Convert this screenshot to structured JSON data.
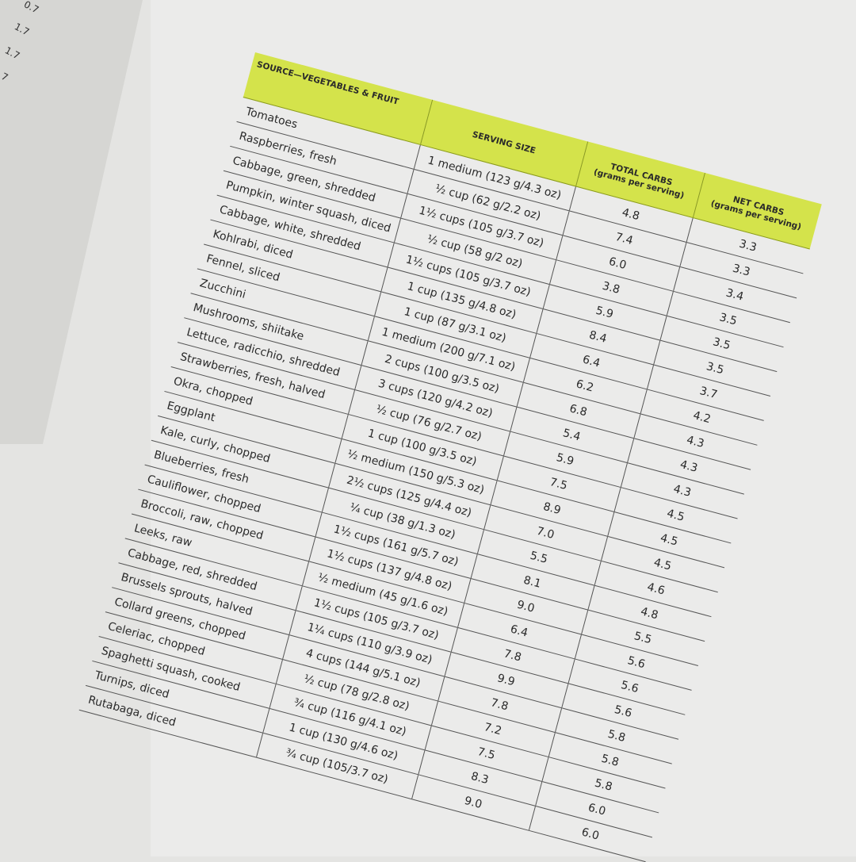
{
  "left_page": {
    "values": [
      "0.7",
      "1.7",
      "1.7",
      "7"
    ]
  },
  "table": {
    "header_color": "#d4e34b",
    "headers": {
      "source": "SOURCE—VEGETABLES & FRUIT",
      "serving": "SERVING SIZE",
      "total": "TOTAL CARBS",
      "total_sub": "(grams per serving)",
      "net": "NET CARBS",
      "net_sub": "(grams per serving)"
    },
    "rows": [
      {
        "source": "Tomatoes",
        "serving": "1 medium (123 g/4.3 oz)",
        "total": "4.8",
        "net": "3.3"
      },
      {
        "source": "Raspberries, fresh",
        "serving": "½ cup (62 g/2.2 oz)",
        "total": "7.4",
        "net": "3.3"
      },
      {
        "source": "Cabbage, green, shredded",
        "serving": "1½ cups (105 g/3.7 oz)",
        "total": "6.0",
        "net": "3.4"
      },
      {
        "source": "Pumpkin, winter squash, diced",
        "serving": "½ cup (58 g/2 oz)",
        "total": "3.8",
        "net": "3.5"
      },
      {
        "source": "Cabbage, white, shredded",
        "serving": "1½ cups (105 g/3.7 oz)",
        "total": "5.9",
        "net": "3.5"
      },
      {
        "source": "Kohlrabi, diced",
        "serving": "1 cup (135 g/4.8 oz)",
        "total": "8.4",
        "net": "3.5"
      },
      {
        "source": "Fennel, sliced",
        "serving": "1 cup (87 g/3.1 oz)",
        "total": "6.4",
        "net": "3.7"
      },
      {
        "source": "Zucchini",
        "serving": "1 medium (200 g/7.1 oz)",
        "total": "6.2",
        "net": "4.2"
      },
      {
        "source": "Mushrooms, shiitake",
        "serving": "2 cups (100 g/3.5 oz)",
        "total": "6.8",
        "net": "4.3"
      },
      {
        "source": "Lettuce, radicchio, shredded",
        "serving": "3 cups (120 g/4.2 oz)",
        "total": "5.4",
        "net": "4.3"
      },
      {
        "source": "Strawberries, fresh, halved",
        "serving": "½ cup (76 g/2.7 oz)",
        "total": "5.9",
        "net": "4.3"
      },
      {
        "source": "Okra, chopped",
        "serving": "1 cup (100 g/3.5 oz)",
        "total": "7.5",
        "net": "4.5"
      },
      {
        "source": "Eggplant",
        "serving": "½ medium (150 g/5.3 oz)",
        "total": "8.9",
        "net": "4.5"
      },
      {
        "source": "Kale, curly, chopped",
        "serving": "2½ cups (125 g/4.4 oz)",
        "total": "7.0",
        "net": "4.5"
      },
      {
        "source": "Blueberries, fresh",
        "serving": "¼ cup (38 g/1.3 oz)",
        "total": "5.5",
        "net": "4.6"
      },
      {
        "source": "Cauliflower, chopped",
        "serving": "1½ cups (161 g/5.7 oz)",
        "total": "8.1",
        "net": "4.8"
      },
      {
        "source": "Broccoli, raw, chopped",
        "serving": "1½ cups (137 g/4.8 oz)",
        "total": "9.0",
        "net": "5.5"
      },
      {
        "source": "Leeks, raw",
        "serving": "½ medium (45 g/1.6 oz)",
        "total": "6.4",
        "net": "5.6"
      },
      {
        "source": "Cabbage, red, shredded",
        "serving": "1½ cups (105 g/3.7 oz)",
        "total": "7.8",
        "net": "5.6"
      },
      {
        "source": "Brussels sprouts, halved",
        "serving": "1¼ cups (110 g/3.9 oz)",
        "total": "9.9",
        "net": "5.6"
      },
      {
        "source": "Collard greens, chopped",
        "serving": "4 cups (144 g/5.1 oz)",
        "total": "7.8",
        "net": "5.8"
      },
      {
        "source": "Celeriac, chopped",
        "serving": "½ cup (78 g/2.8 oz)",
        "total": "7.2",
        "net": "5.8"
      },
      {
        "source": "Spaghetti squash, cooked",
        "serving": "¾ cup (116 g/4.1 oz)",
        "total": "7.5",
        "net": "5.8"
      },
      {
        "source": "Turnips, diced",
        "serving": "1 cup (130 g/4.6 oz)",
        "total": "8.3",
        "net": "6.0"
      },
      {
        "source": "Rutabaga, diced",
        "serving": "¾ cup (105/3.7 oz)",
        "total": "9.0",
        "net": "6.0"
      }
    ]
  }
}
